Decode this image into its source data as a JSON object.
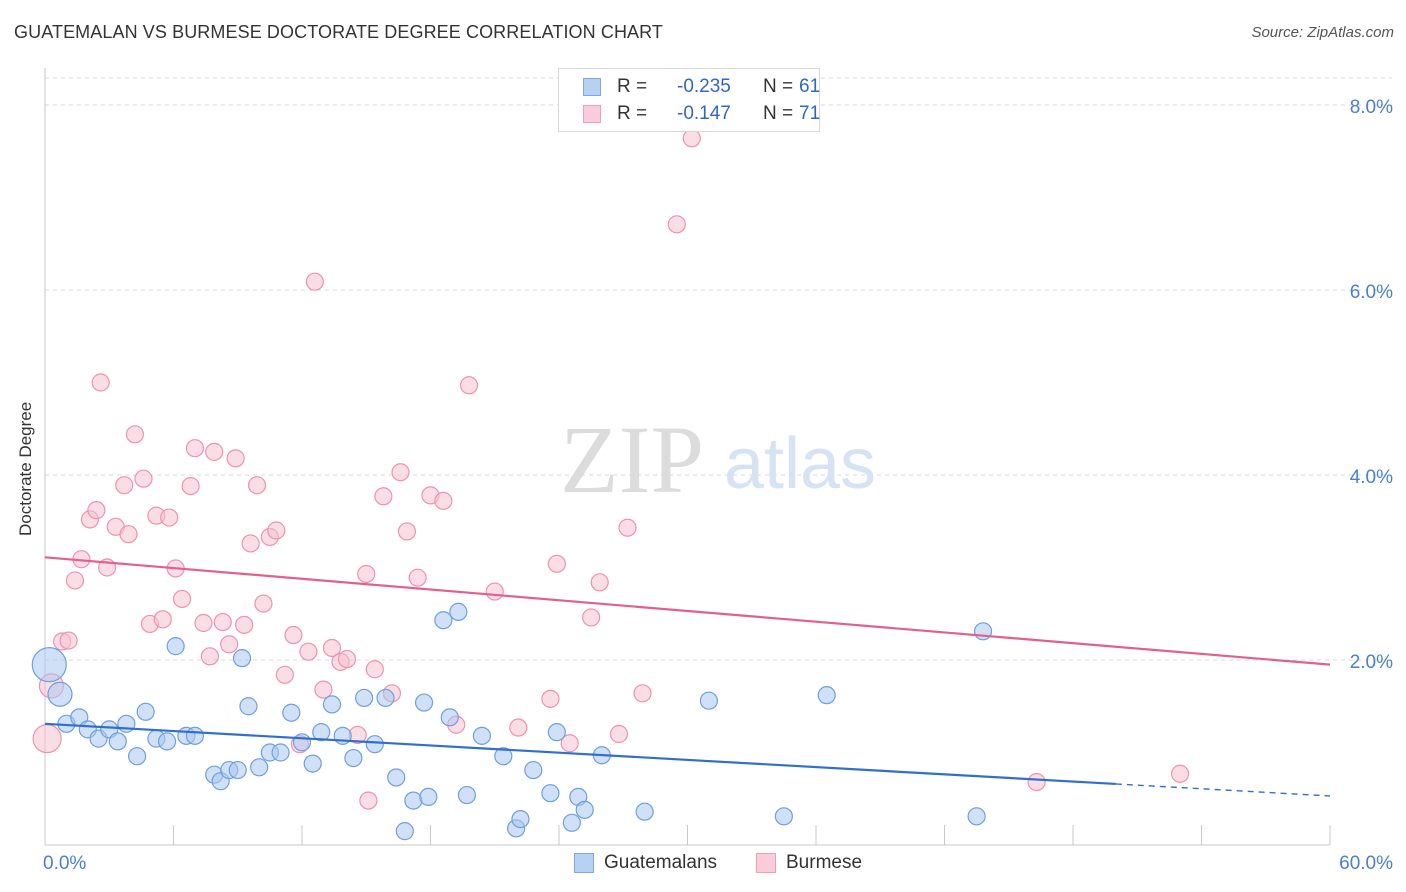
{
  "header": {
    "title": "GUATEMALAN VS BURMESE DOCTORATE DEGREE CORRELATION CHART",
    "source": "Source: ZipAtlas.com"
  },
  "watermark": {
    "zip": "ZIP",
    "atlas": "atlas"
  },
  "legend": {
    "rows": [
      {
        "r_label": "R =",
        "r_value": "-0.235",
        "n_label": "N =",
        "n_value": "61",
        "color": "#a9c8f0"
      },
      {
        "r_label": "R =",
        "r_value": "-0.147",
        "n_label": "N =",
        "n_value": "71",
        "color": "#f5b8cb"
      }
    ]
  },
  "bottom_legend": {
    "series1": "Guatemalans",
    "series2": "Burmese"
  },
  "colors": {
    "guatemalan_fill": "#a9c8f0",
    "guatemalan_stroke": "#6f9fde",
    "guatemalan_line": "#2f6fd0",
    "burmese_fill": "#f7c1d2",
    "burmese_stroke": "#ee92b0",
    "burmese_line": "#e4608c",
    "tick_label": "#4a7fd0",
    "grid": "#d9d9d9"
  },
  "chart_data": {
    "type": "scatter",
    "title": "GUATEMALAN VS BURMESE DOCTORATE DEGREE CORRELATION CHART",
    "xlabel": "",
    "ylabel": "Doctorate Degree",
    "xlim": [
      0,
      60
    ],
    "ylim": [
      0,
      8.4
    ],
    "x_tick_labels": [
      "0.0%",
      "60.0%"
    ],
    "y_ticks": [
      2,
      4,
      6,
      8
    ],
    "y_tick_labels": [
      "2.0%",
      "4.0%",
      "6.0%",
      "8.0%"
    ],
    "grid": true,
    "legend_position": "top-center",
    "series": [
      {
        "name": "Guatemalans",
        "R": -0.235,
        "N": 61,
        "trend": {
          "x0": 0,
          "y0": 1.31,
          "x1": 50,
          "y1": 0.66,
          "dashed_to_x": 60,
          "dashed_to_y": 0.53
        },
        "points": [
          [
            0.2,
            1.95
          ],
          [
            0.7,
            1.63
          ],
          [
            1.0,
            1.31
          ],
          [
            1.6,
            1.38
          ],
          [
            2.0,
            1.25
          ],
          [
            2.5,
            1.15
          ],
          [
            3.0,
            1.25
          ],
          [
            3.4,
            1.12
          ],
          [
            3.8,
            1.31
          ],
          [
            4.3,
            0.96
          ],
          [
            4.7,
            1.44
          ],
          [
            5.2,
            1.15
          ],
          [
            5.7,
            1.12
          ],
          [
            6.1,
            2.15
          ],
          [
            6.6,
            1.18
          ],
          [
            7.0,
            1.18
          ],
          [
            7.9,
            0.76
          ],
          [
            8.2,
            0.69
          ],
          [
            8.6,
            0.81
          ],
          [
            9.0,
            0.81
          ],
          [
            9.5,
            1.5
          ],
          [
            10.0,
            0.84
          ],
          [
            10.5,
            1.0
          ],
          [
            11.0,
            1.0
          ],
          [
            11.5,
            1.43
          ],
          [
            12.0,
            1.11
          ],
          [
            12.5,
            0.88
          ],
          [
            12.9,
            1.22
          ],
          [
            13.4,
            1.52
          ],
          [
            13.9,
            1.18
          ],
          [
            14.4,
            0.94
          ],
          [
            14.9,
            1.59
          ],
          [
            15.4,
            1.09
          ],
          [
            15.9,
            1.59
          ],
          [
            16.4,
            0.73
          ],
          [
            16.8,
            0.15
          ],
          [
            17.2,
            0.48
          ],
          [
            17.7,
            1.54
          ],
          [
            17.9,
            0.52
          ],
          [
            18.6,
            2.43
          ],
          [
            18.9,
            1.38
          ],
          [
            19.3,
            2.52
          ],
          [
            19.7,
            0.54
          ],
          [
            20.4,
            1.18
          ],
          [
            21.4,
            0.96
          ],
          [
            22.0,
            0.18
          ],
          [
            22.2,
            0.28
          ],
          [
            22.8,
            0.81
          ],
          [
            23.6,
            0.56
          ],
          [
            23.9,
            1.22
          ],
          [
            24.6,
            0.24
          ],
          [
            24.9,
            0.52
          ],
          [
            25.2,
            0.38
          ],
          [
            26.0,
            0.97
          ],
          [
            28.0,
            0.36
          ],
          [
            31.0,
            1.56
          ],
          [
            34.5,
            0.31
          ],
          [
            36.5,
            1.62
          ],
          [
            43.5,
            0.31
          ],
          [
            43.8,
            2.31
          ],
          [
            9.2,
            2.02
          ]
        ]
      },
      {
        "name": "Burmese",
        "R": -0.147,
        "N": 71,
        "trend": {
          "x0": 0,
          "y0": 3.11,
          "x1": 60,
          "y1": 1.95
        },
        "points": [
          [
            0.1,
            1.15
          ],
          [
            0.3,
            1.72
          ],
          [
            0.8,
            2.2
          ],
          [
            1.1,
            2.21
          ],
          [
            1.4,
            2.86
          ],
          [
            1.7,
            3.09
          ],
          [
            2.1,
            3.52
          ],
          [
            2.4,
            3.62
          ],
          [
            2.6,
            5.0
          ],
          [
            2.9,
            3.0
          ],
          [
            3.3,
            3.44
          ],
          [
            3.7,
            3.89
          ],
          [
            3.9,
            3.36
          ],
          [
            4.2,
            4.44
          ],
          [
            4.6,
            3.96
          ],
          [
            4.9,
            2.39
          ],
          [
            5.2,
            3.56
          ],
          [
            5.5,
            2.44
          ],
          [
            5.8,
            3.54
          ],
          [
            6.1,
            2.99
          ],
          [
            6.4,
            2.66
          ],
          [
            6.8,
            3.88
          ],
          [
            7.0,
            4.29
          ],
          [
            7.4,
            2.4
          ],
          [
            7.7,
            2.04
          ],
          [
            7.9,
            4.25
          ],
          [
            8.3,
            2.41
          ],
          [
            8.6,
            2.17
          ],
          [
            8.9,
            4.18
          ],
          [
            9.3,
            2.38
          ],
          [
            9.6,
            3.26
          ],
          [
            9.9,
            3.89
          ],
          [
            10.2,
            2.61
          ],
          [
            10.5,
            3.33
          ],
          [
            10.8,
            3.4
          ],
          [
            11.2,
            1.84
          ],
          [
            11.6,
            2.27
          ],
          [
            11.9,
            1.09
          ],
          [
            12.3,
            2.09
          ],
          [
            12.6,
            6.09
          ],
          [
            13.0,
            1.68
          ],
          [
            13.4,
            2.13
          ],
          [
            13.8,
            1.98
          ],
          [
            14.1,
            2.01
          ],
          [
            14.6,
            1.19
          ],
          [
            15.0,
            2.93
          ],
          [
            15.4,
            1.9
          ],
          [
            15.8,
            3.77
          ],
          [
            16.2,
            1.64
          ],
          [
            16.6,
            4.03
          ],
          [
            16.9,
            3.39
          ],
          [
            17.4,
            2.89
          ],
          [
            18.0,
            3.78
          ],
          [
            18.6,
            3.72
          ],
          [
            19.2,
            1.3
          ],
          [
            19.8,
            4.97
          ],
          [
            21.0,
            2.74
          ],
          [
            22.1,
            1.27
          ],
          [
            23.6,
            1.58
          ],
          [
            23.9,
            3.04
          ],
          [
            24.5,
            1.1
          ],
          [
            25.5,
            2.46
          ],
          [
            25.9,
            2.84
          ],
          [
            26.8,
            1.2
          ],
          [
            27.2,
            3.43
          ],
          [
            27.9,
            1.64
          ],
          [
            29.5,
            6.71
          ],
          [
            30.2,
            7.64
          ],
          [
            46.3,
            0.68
          ],
          [
            53.0,
            0.77
          ],
          [
            15.1,
            0.48
          ]
        ]
      }
    ]
  }
}
